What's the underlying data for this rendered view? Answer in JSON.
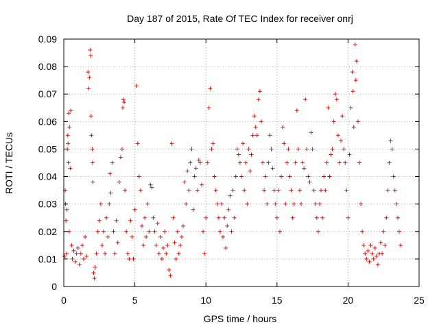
{
  "chart_data": {
    "type": "scatter",
    "title": "Day 187 of 2015, Rate Of TEC Index for receiver onrj",
    "xlabel": "GPS time / hours",
    "ylabel": "ROTI / TECUs",
    "xlim": [
      0,
      25
    ],
    "ylim": [
      0,
      0.09
    ],
    "xticks": [
      0,
      5,
      10,
      15,
      20,
      25
    ],
    "yticks": [
      0,
      0.01,
      0.02,
      0.03,
      0.04,
      0.05,
      0.06,
      0.07,
      0.08,
      0.09
    ],
    "xtick_labels": [
      "0",
      "5",
      "10",
      "15",
      "20",
      "25"
    ],
    "ytick_labels": [
      "0",
      "0.01",
      "0.02",
      "0.03",
      "0.04",
      "0.05",
      "0.06",
      "0.07",
      "0.08",
      "0.09"
    ],
    "grid": true,
    "grid_style": "dotted",
    "marker": "plus",
    "marker_color": "#ff0000",
    "points": [
      [
        0.05,
        0.011
      ],
      [
        0.1,
        0.035
      ],
      [
        0.12,
        0.03
      ],
      [
        0.15,
        0.024
      ],
      [
        0.2,
        0.012
      ],
      [
        0.22,
        0.028
      ],
      [
        0.25,
        0.05
      ],
      [
        0.28,
        0.055
      ],
      [
        0.3,
        0.052
      ],
      [
        0.32,
        0.045
      ],
      [
        0.35,
        0.063
      ],
      [
        0.38,
        0.02
      ],
      [
        0.4,
        0.058
      ],
      [
        0.45,
        0.043
      ],
      [
        0.5,
        0.064
      ],
      [
        0.55,
        0.015
      ],
      [
        0.6,
        0.01
      ],
      [
        0.7,
        0.013
      ],
      [
        0.8,
        0.009
      ],
      [
        0.9,
        0.012
      ],
      [
        1.0,
        0.014
      ],
      [
        1.1,
        0.008
      ],
      [
        1.2,
        0.012
      ],
      [
        1.3,
        0.015
      ],
      [
        1.4,
        0.01
      ],
      [
        1.5,
        0.018
      ],
      [
        1.6,
        0.011
      ],
      [
        1.7,
        0.078
      ],
      [
        1.75,
        0.072
      ],
      [
        1.8,
        0.076
      ],
      [
        1.85,
        0.086
      ],
      [
        1.9,
        0.084
      ],
      [
        1.92,
        0.062
      ],
      [
        1.95,
        0.055
      ],
      [
        2.0,
        0.05
      ],
      [
        2.02,
        0.045
      ],
      [
        2.05,
        0.038
      ],
      [
        2.1,
        0.005
      ],
      [
        2.15,
        0.003
      ],
      [
        2.2,
        0.007
      ],
      [
        2.3,
        0.012
      ],
      [
        2.4,
        0.02
      ],
      [
        2.5,
        0.024
      ],
      [
        2.6,
        0.03
      ],
      [
        2.7,
        0.015
      ],
      [
        2.8,
        0.02
      ],
      [
        2.9,
        0.012
      ],
      [
        3.0,
        0.025
      ],
      [
        3.1,
        0.018
      ],
      [
        3.2,
        0.03
      ],
      [
        3.25,
        0.041
      ],
      [
        3.3,
        0.034
      ],
      [
        3.4,
        0.045
      ],
      [
        3.5,
        0.02
      ],
      [
        3.6,
        0.012
      ],
      [
        3.7,
        0.024
      ],
      [
        3.8,
        0.016
      ],
      [
        3.9,
        0.038
      ],
      [
        4.0,
        0.047
      ],
      [
        4.1,
        0.05
      ],
      [
        4.15,
        0.065
      ],
      [
        4.2,
        0.068
      ],
      [
        4.25,
        0.067
      ],
      [
        4.3,
        0.035
      ],
      [
        4.4,
        0.02
      ],
      [
        4.5,
        0.012
      ],
      [
        4.6,
        0.01
      ],
      [
        4.7,
        0.024
      ],
      [
        4.8,
        0.018
      ],
      [
        4.9,
        0.01
      ],
      [
        5.0,
        0.028
      ],
      [
        5.1,
        0.073
      ],
      [
        5.2,
        0.052
      ],
      [
        5.3,
        0.04
      ],
      [
        5.4,
        0.035
      ],
      [
        5.5,
        0.022
      ],
      [
        5.6,
        0.015
      ],
      [
        5.7,
        0.025
      ],
      [
        5.8,
        0.018
      ],
      [
        5.9,
        0.03
      ],
      [
        6.0,
        0.02
      ],
      [
        6.1,
        0.037
      ],
      [
        6.2,
        0.036
      ],
      [
        6.3,
        0.025
      ],
      [
        6.4,
        0.02
      ],
      [
        6.5,
        0.015
      ],
      [
        6.6,
        0.023
      ],
      [
        6.7,
        0.012
      ],
      [
        6.8,
        0.018
      ],
      [
        6.9,
        0.01
      ],
      [
        7.0,
        0.014
      ],
      [
        7.1,
        0.02
      ],
      [
        7.2,
        0.012
      ],
      [
        7.3,
        0.015
      ],
      [
        7.4,
        0.006
      ],
      [
        7.5,
        0.004
      ],
      [
        7.6,
        0.052
      ],
      [
        7.7,
        0.025
      ],
      [
        7.8,
        0.016
      ],
      [
        7.9,
        0.01
      ],
      [
        8.0,
        0.02
      ],
      [
        8.1,
        0.012
      ],
      [
        8.2,
        0.015
      ],
      [
        8.3,
        0.018
      ],
      [
        8.4,
        0.022
      ],
      [
        8.5,
        0.038
      ],
      [
        8.6,
        0.03
      ],
      [
        8.7,
        0.042
      ],
      [
        8.8,
        0.035
      ],
      [
        8.9,
        0.045
      ],
      [
        9.0,
        0.05
      ],
      [
        9.1,
        0.028
      ],
      [
        9.2,
        0.04
      ],
      [
        9.3,
        0.043
      ],
      [
        9.4,
        0.035
      ],
      [
        9.5,
        0.046
      ],
      [
        9.6,
        0.045
      ],
      [
        9.7,
        0.037
      ],
      [
        9.8,
        0.02
      ],
      [
        9.9,
        0.012
      ],
      [
        10.0,
        0.025
      ],
      [
        10.1,
        0.045
      ],
      [
        10.2,
        0.065
      ],
      [
        10.3,
        0.072
      ],
      [
        10.4,
        0.05
      ],
      [
        10.5,
        0.052
      ],
      [
        10.6,
        0.04
      ],
      [
        10.7,
        0.035
      ],
      [
        10.8,
        0.03
      ],
      [
        10.9,
        0.025
      ],
      [
        11.0,
        0.02
      ],
      [
        11.1,
        0.03
      ],
      [
        11.2,
        0.018
      ],
      [
        11.3,
        0.025
      ],
      [
        11.4,
        0.014
      ],
      [
        11.5,
        0.022
      ],
      [
        11.6,
        0.028
      ],
      [
        11.7,
        0.033
      ],
      [
        11.8,
        0.02
      ],
      [
        11.9,
        0.035
      ],
      [
        12.0,
        0.025
      ],
      [
        12.1,
        0.04
      ],
      [
        12.2,
        0.05
      ],
      [
        12.3,
        0.048
      ],
      [
        12.4,
        0.045
      ],
      [
        12.5,
        0.04
      ],
      [
        12.6,
        0.052
      ],
      [
        12.7,
        0.035
      ],
      [
        12.8,
        0.045
      ],
      [
        12.9,
        0.03
      ],
      [
        13.0,
        0.05
      ],
      [
        13.1,
        0.042
      ],
      [
        13.2,
        0.048
      ],
      [
        13.3,
        0.055
      ],
      [
        13.4,
        0.062
      ],
      [
        13.5,
        0.058
      ],
      [
        13.6,
        0.055
      ],
      [
        13.7,
        0.068
      ],
      [
        13.8,
        0.071
      ],
      [
        13.9,
        0.06
      ],
      [
        14.0,
        0.045
      ],
      [
        14.1,
        0.035
      ],
      [
        14.2,
        0.04
      ],
      [
        14.3,
        0.03
      ],
      [
        14.4,
        0.045
      ],
      [
        14.5,
        0.055
      ],
      [
        14.6,
        0.05
      ],
      [
        14.7,
        0.043
      ],
      [
        14.8,
        0.035
      ],
      [
        14.9,
        0.03
      ],
      [
        15.0,
        0.025
      ],
      [
        15.1,
        0.035
      ],
      [
        15.2,
        0.02
      ],
      [
        15.3,
        0.04
      ],
      [
        15.4,
        0.058
      ],
      [
        15.5,
        0.052
      ],
      [
        15.6,
        0.03
      ],
      [
        15.7,
        0.045
      ],
      [
        15.8,
        0.05
      ],
      [
        15.9,
        0.04
      ],
      [
        16.0,
        0.035
      ],
      [
        16.1,
        0.025
      ],
      [
        16.2,
        0.03
      ],
      [
        16.3,
        0.045
      ],
      [
        16.4,
        0.064
      ],
      [
        16.5,
        0.05
      ],
      [
        16.6,
        0.035
      ],
      [
        16.7,
        0.03
      ],
      [
        16.8,
        0.045
      ],
      [
        16.9,
        0.043
      ],
      [
        17.0,
        0.068
      ],
      [
        17.1,
        0.05
      ],
      [
        17.2,
        0.04
      ],
      [
        17.3,
        0.038
      ],
      [
        17.4,
        0.056
      ],
      [
        17.5,
        0.05
      ],
      [
        17.6,
        0.035
      ],
      [
        17.7,
        0.03
      ],
      [
        17.8,
        0.025
      ],
      [
        17.9,
        0.02
      ],
      [
        18.0,
        0.03
      ],
      [
        18.1,
        0.035
      ],
      [
        18.2,
        0.025
      ],
      [
        18.3,
        0.04
      ],
      [
        18.4,
        0.035
      ],
      [
        18.5,
        0.045
      ],
      [
        18.6,
        0.065
      ],
      [
        18.7,
        0.04
      ],
      [
        18.8,
        0.048
      ],
      [
        18.9,
        0.05
      ],
      [
        19.0,
        0.06
      ],
      [
        19.1,
        0.07
      ],
      [
        19.2,
        0.068
      ],
      [
        19.3,
        0.055
      ],
      [
        19.4,
        0.045
      ],
      [
        19.5,
        0.053
      ],
      [
        19.6,
        0.062
      ],
      [
        19.7,
        0.05
      ],
      [
        19.8,
        0.045
      ],
      [
        19.9,
        0.035
      ],
      [
        20.0,
        0.025
      ],
      [
        20.1,
        0.048
      ],
      [
        20.2,
        0.065
      ],
      [
        20.3,
        0.078
      ],
      [
        20.35,
        0.071
      ],
      [
        20.4,
        0.058
      ],
      [
        20.5,
        0.088
      ],
      [
        20.55,
        0.075
      ],
      [
        20.6,
        0.082
      ],
      [
        20.7,
        0.06
      ],
      [
        20.8,
        0.045
      ],
      [
        20.9,
        0.03
      ],
      [
        21.0,
        0.02
      ],
      [
        21.1,
        0.015
      ],
      [
        21.2,
        0.012
      ],
      [
        21.3,
        0.01
      ],
      [
        21.4,
        0.013
      ],
      [
        21.5,
        0.009
      ],
      [
        21.6,
        0.015
      ],
      [
        21.7,
        0.012
      ],
      [
        21.8,
        0.01
      ],
      [
        21.9,
        0.014
      ],
      [
        22.0,
        0.011
      ],
      [
        22.1,
        0.008
      ],
      [
        22.2,
        0.012
      ],
      [
        22.3,
        0.016
      ],
      [
        22.4,
        0.012
      ],
      [
        22.5,
        0.02
      ],
      [
        22.6,
        0.015
      ],
      [
        22.7,
        0.025
      ],
      [
        22.8,
        0.035
      ],
      [
        22.9,
        0.045
      ],
      [
        23.0,
        0.053
      ],
      [
        23.1,
        0.05
      ],
      [
        23.2,
        0.04
      ],
      [
        23.3,
        0.035
      ],
      [
        23.4,
        0.03
      ],
      [
        23.5,
        0.025
      ],
      [
        23.6,
        0.02
      ],
      [
        23.7,
        0.015
      ]
    ]
  }
}
